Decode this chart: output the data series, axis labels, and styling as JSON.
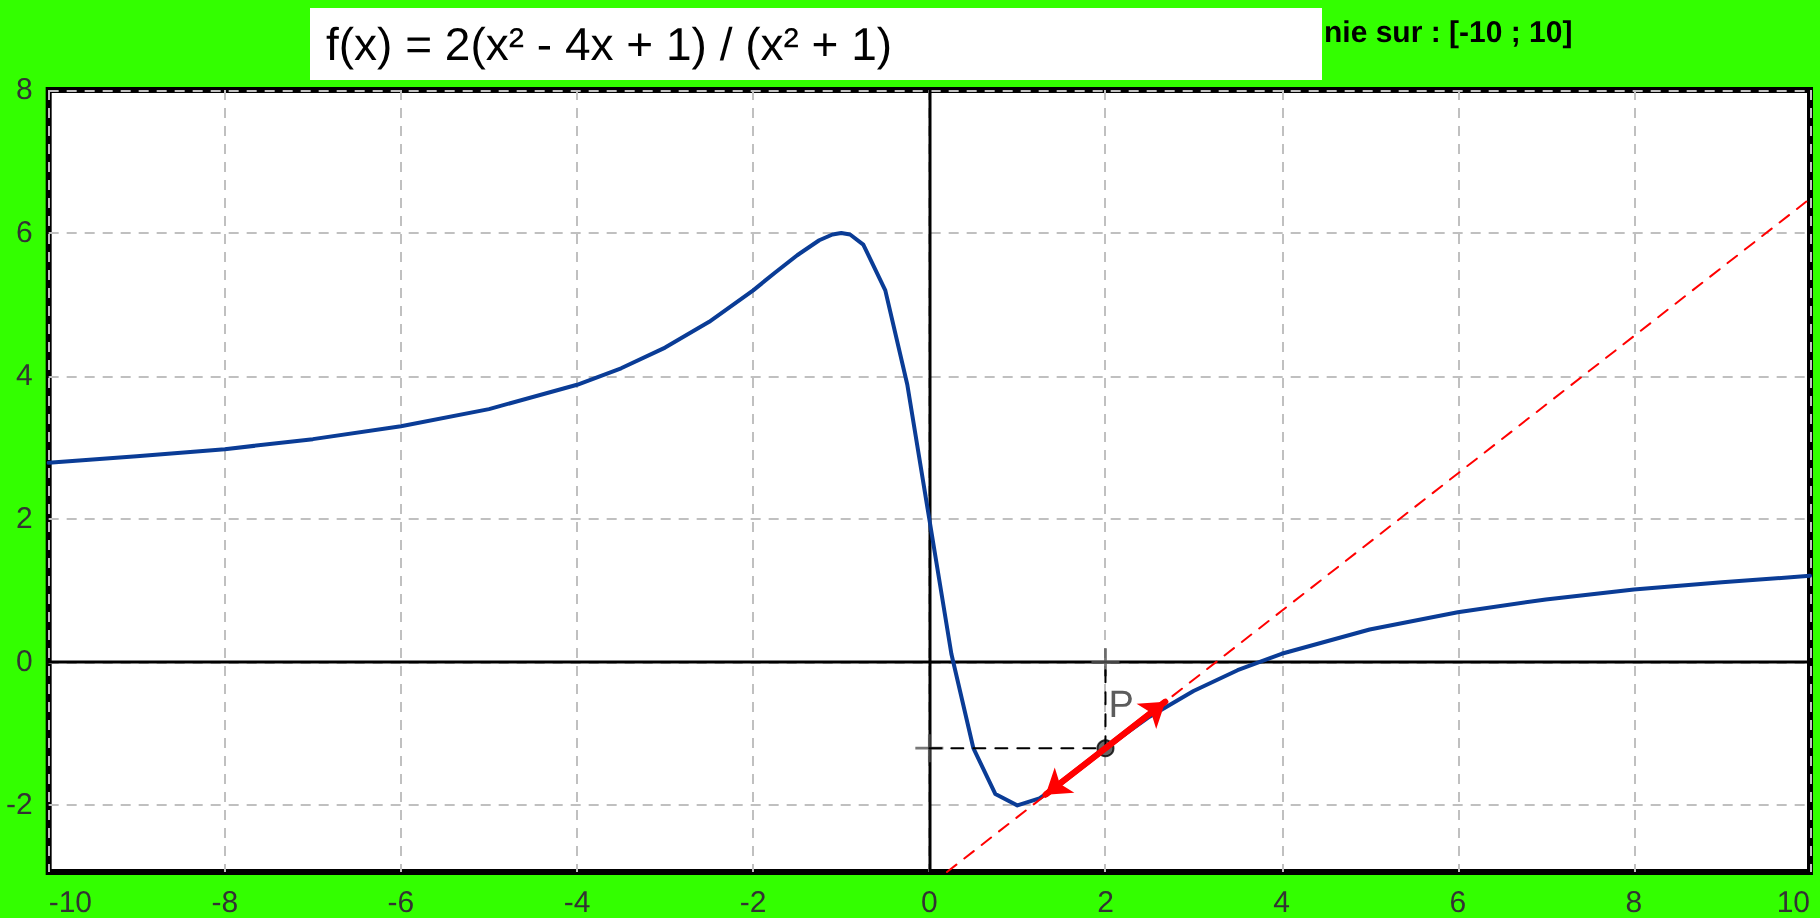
{
  "chart_data": {
    "type": "line",
    "title": "f(x) = 2(x² - 4x + 1) / (x² + 1)",
    "subtitle": "nie sur : [-10 ; 10]",
    "xlim": [
      -10,
      10
    ],
    "xticks": [
      -10,
      -8,
      -6,
      -4,
      -2,
      0,
      2,
      4,
      6,
      8,
      10
    ],
    "ylim": [
      -2.93,
      8
    ],
    "yticks": [
      -2,
      0,
      2,
      4,
      6,
      8
    ],
    "grid": true,
    "legend": false,
    "series": [
      {
        "color": "#0a3c96",
        "marker": "none",
        "x": [
          -10,
          -9,
          -8,
          -7,
          -6,
          -5,
          -4,
          -3.5,
          -3,
          -2.5,
          -2,
          -1.75,
          -1.5,
          -1.25,
          -1.1,
          -1,
          -0.9,
          -0.75,
          -0.5,
          -0.25,
          0,
          0.25,
          0.5,
          0.75,
          1,
          1.25,
          1.5,
          2,
          2.5,
          3,
          3.5,
          4,
          5,
          6,
          7,
          8,
          9,
          10
        ],
        "values": [
          2.79,
          2.88,
          2.98,
          3.12,
          3.3,
          3.54,
          3.88,
          4.11,
          4.4,
          4.76,
          5.2,
          5.45,
          5.69,
          5.9,
          5.98,
          6,
          5.98,
          5.84,
          5.2,
          3.88,
          2,
          0.12,
          -1.2,
          -1.84,
          -2,
          -1.9,
          -1.69,
          -1.2,
          -0.76,
          -0.4,
          -0.11,
          0.12,
          0.46,
          0.7,
          0.88,
          1.02,
          1.12,
          1.21
        ]
      },
      {
        "color": "#ff0000",
        "marker": "none",
        "line_style": "dashed",
        "x": [
          0.2,
          10
        ],
        "values": [
          -2.93,
          6.48
        ]
      },
      {
        "color": "#000000",
        "marker": "none",
        "line_style": "dashed",
        "x": [
          0,
          2,
          2
        ],
        "values": [
          -1.2,
          -1.2,
          0
        ]
      },
      {
        "color": "#ff0000",
        "marker": "none",
        "x": [
          1.32,
          2.68
        ],
        "values": [
          -1.85,
          -0.55
        ]
      },
      {
        "type": "scatter",
        "color": "#555555",
        "marker": "cross",
        "x": [
          0,
          2
        ],
        "values": [
          -1.2,
          0
        ]
      },
      {
        "type": "scatter",
        "name": "P",
        "color": "#404040",
        "marker": "circle",
        "x": [
          2
        ],
        "values": [
          -1.2
        ]
      }
    ]
  }
}
